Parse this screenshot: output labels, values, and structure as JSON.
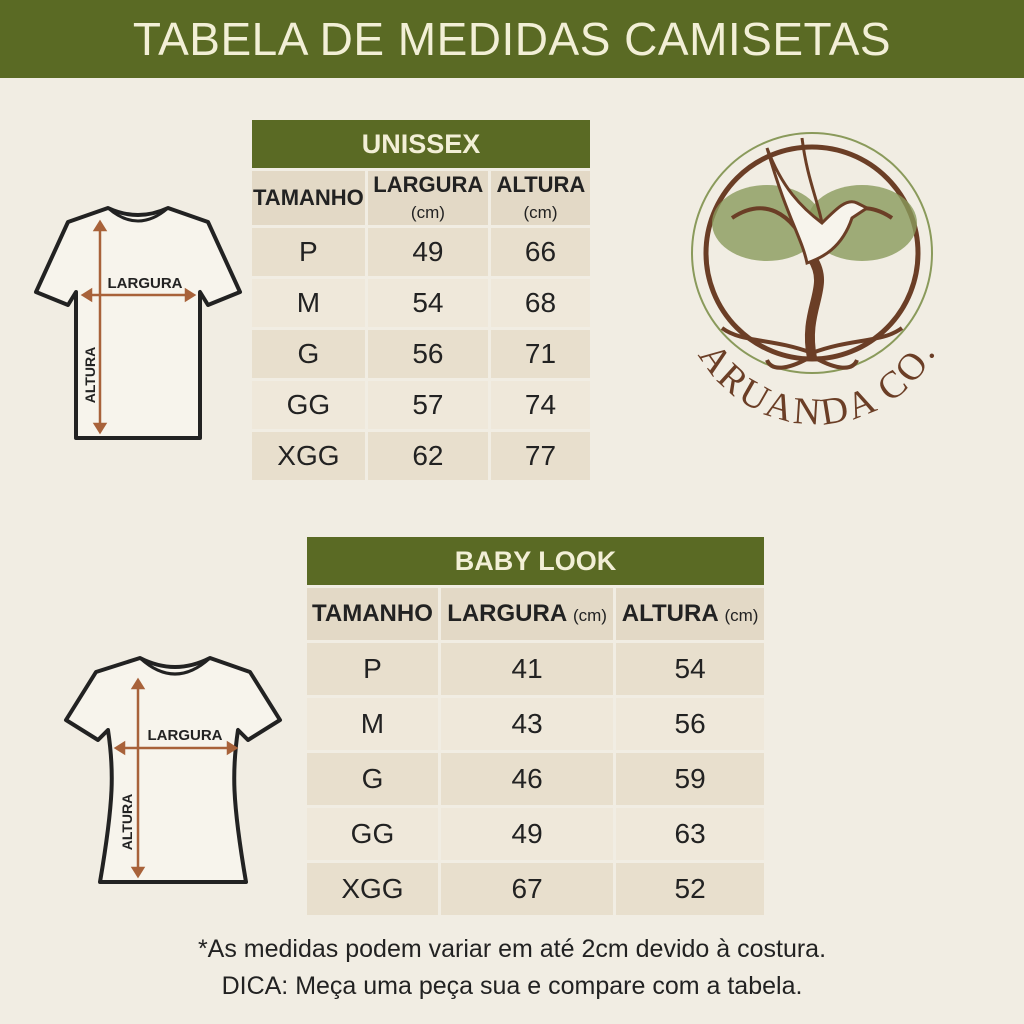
{
  "title": "TABELA DE MEDIDAS CAMISETAS",
  "colors": {
    "header_green": "#5a6a24",
    "background": "#f1ede3",
    "logo_brown": "#6b3e26",
    "logo_green": "#8a9a5b"
  },
  "unissex": {
    "title": "UNISSEX",
    "columns": [
      {
        "label": "TAMANHO",
        "unit": ""
      },
      {
        "label": "LARGURA",
        "unit": "(cm)"
      },
      {
        "label": "ALTURA",
        "unit": "(cm)"
      }
    ],
    "rows": [
      [
        "P",
        "49",
        "66"
      ],
      [
        "M",
        "54",
        "68"
      ],
      [
        "G",
        "56",
        "71"
      ],
      [
        "GG",
        "57",
        "74"
      ],
      [
        "XGG",
        "62",
        "77"
      ]
    ],
    "diagram": {
      "width_label": "LARGURA",
      "height_label": "ALTURA"
    }
  },
  "babylook": {
    "title": "BABY LOOK",
    "columns": [
      {
        "label": "TAMANHO",
        "unit": ""
      },
      {
        "label": "LARGURA",
        "unit": "(cm)"
      },
      {
        "label": "ALTURA",
        "unit": "(cm)"
      }
    ],
    "rows": [
      [
        "P",
        "41",
        "54"
      ],
      [
        "M",
        "43",
        "56"
      ],
      [
        "G",
        "46",
        "59"
      ],
      [
        "GG",
        "49",
        "63"
      ],
      [
        "XGG",
        "67",
        "52"
      ]
    ],
    "diagram": {
      "width_label": "LARGURA",
      "height_label": "ALTURA"
    }
  },
  "logo": {
    "text": "ARUANDA CO."
  },
  "footer": {
    "note": "*As medidas podem variar em até 2cm devido à costura.",
    "tip": "DICA: Meça uma peça sua e compare com a tabela."
  }
}
